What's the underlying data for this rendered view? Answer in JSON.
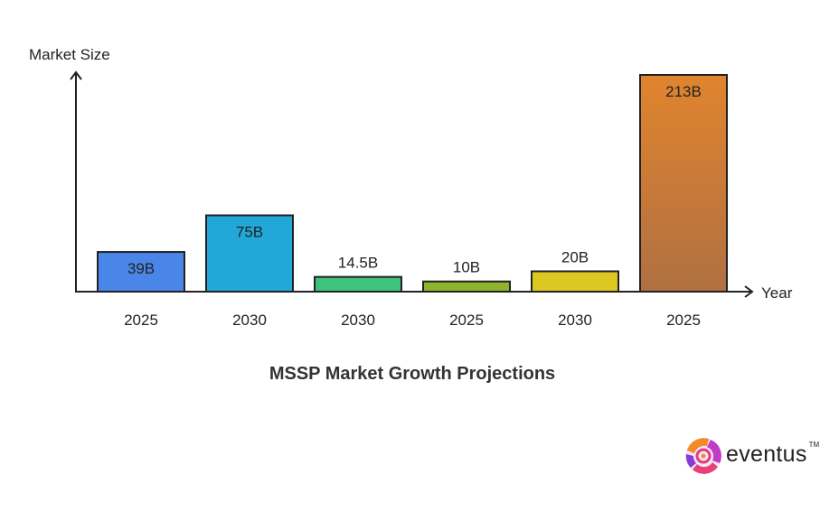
{
  "chart_data": {
    "type": "bar",
    "title": "MSSP Market Growth Projections",
    "xlabel": "Year",
    "ylabel": "Market Size",
    "categories": [
      "2025",
      "2030",
      "2030",
      "2025",
      "2030",
      "2025"
    ],
    "values": [
      39,
      75,
      14.5,
      10,
      20,
      213
    ],
    "data_labels": [
      "39B",
      "75B",
      "14.5B",
      "10B",
      "20B",
      "213B"
    ],
    "unit": "B",
    "colors": [
      "#4a86e8",
      "#22a8d8",
      "#3cc47c",
      "#8db42c",
      "#dcc820",
      "#d98232"
    ],
    "grid": false,
    "legend": "none"
  },
  "logo": {
    "text": "eventus",
    "tm": "TM"
  }
}
